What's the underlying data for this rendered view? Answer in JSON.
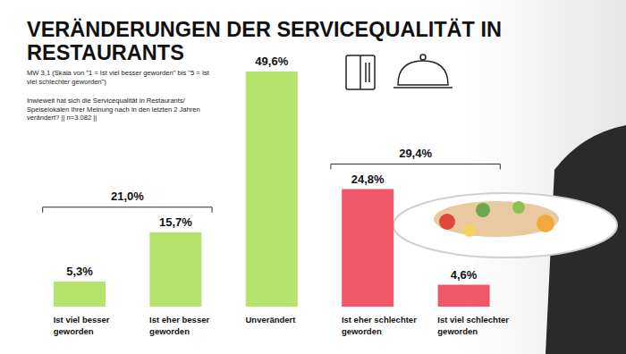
{
  "chart_data": {
    "type": "bar",
    "title": "VERÄNDERUNGEN DER SERVICEQUALITÄT IN RESTAURANTS",
    "subtitle": [
      "MW 3,1 (Skala von \"1 = Ist viel besser geworden\" bis \"5 = Ist viel schlechter geworden\")",
      "Inwieweit hat sich die Servicequalität in Restaurants/ Speiselokalen Ihrer Meinung nach in den letzten 2 Jahren verändert? || n=3.082 ||"
    ],
    "categories": [
      "Ist viel besser geworden",
      "Ist eher besser geworden",
      "Unverändert",
      "Ist eher schlechter geworden",
      "Ist viel schlechter geworden"
    ],
    "values": [
      5.3,
      15.7,
      49.6,
      24.8,
      4.6
    ],
    "value_labels": [
      "5,3%",
      "15,7%",
      "49,6%",
      "24,8%",
      "4,6%"
    ],
    "colors": [
      "#b5e36b",
      "#b5e36b",
      "#b5e36b",
      "#f0586a",
      "#f0586a"
    ],
    "data_labels": true,
    "tick_labels": "x",
    "grid": false,
    "annotations": [
      {
        "text": "21,0%",
        "from": "Ist viel besser geworden",
        "to": "Ist eher besser geworden"
      },
      {
        "text": "29,4%",
        "from": "Ist eher schlechter geworden",
        "to": "Ist viel schlechter geworden"
      }
    ]
  }
}
